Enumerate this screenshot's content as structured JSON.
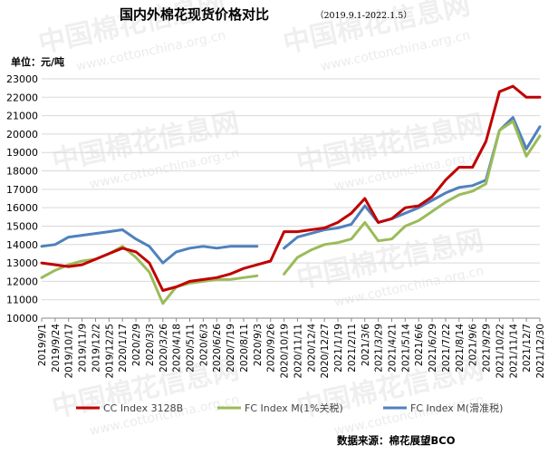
{
  "chart_data": {
    "type": "line",
    "title": "国内外棉花现货价格对比",
    "title_note": "（2019.9.1-2022.1.5）",
    "ylabel": "单位：元/吨",
    "ylim": [
      10000,
      23000
    ],
    "yticks": [
      10000,
      11000,
      12000,
      13000,
      14000,
      15000,
      16000,
      17000,
      18000,
      19000,
      20000,
      21000,
      22000,
      23000
    ],
    "grid": "horizontal",
    "legend_position": "bottom",
    "source": "数据来源：棉花展望BCO",
    "x": [
      "2019/9/1",
      "2019/9/24",
      "2019/10/17",
      "2019/11/9",
      "2019/12/2",
      "2019/12/25",
      "2020/1/17",
      "2020/2/9",
      "2020/3/3",
      "2020/3/26",
      "2020/4/18",
      "2020/5/11",
      "2020/6/3",
      "2020/6/26",
      "2020/7/19",
      "2020/8/11",
      "2020/9/3",
      "2020/9/26",
      "2020/10/19",
      "2020/11/11",
      "2020/12/4",
      "2020/12/27",
      "2021/1/19",
      "2021/2/11",
      "2021/3/6",
      "2021/3/29",
      "2021/4/21",
      "2021/5/14",
      "2021/6/6",
      "2021/6/29",
      "2021/7/22",
      "2021/8/14",
      "2021/9/6",
      "2021/9/29",
      "2021/10/22",
      "2021/11/14",
      "2021/12/7",
      "2021/12/30"
    ],
    "series": [
      {
        "name": "CC Index 3128B",
        "color": "#c00000",
        "values": [
          13000,
          12900,
          12800,
          12900,
          13200,
          13500,
          13800,
          13600,
          13000,
          11500,
          11700,
          12000,
          12100,
          12200,
          12400,
          12700,
          12900,
          13100,
          14700,
          14700,
          14800,
          14900,
          15200,
          15700,
          16500,
          15200,
          15400,
          16000,
          16100,
          16600,
          17500,
          18200,
          18200,
          19600,
          22300,
          22600,
          22000,
          22000
        ]
      },
      {
        "name": "FC Index M(1%关税)",
        "color": "#9bbb59",
        "values": [
          12200,
          12600,
          12900,
          13100,
          13200,
          13500,
          13900,
          13300,
          12500,
          10800,
          11700,
          11900,
          12000,
          12100,
          12100,
          12200,
          12300,
          null,
          12400,
          13300,
          13700,
          14000,
          14100,
          14300,
          15200,
          14200,
          14300,
          15000,
          15300,
          15800,
          16300,
          16700,
          16900,
          17300,
          20200,
          20700,
          18800,
          19900
        ]
      },
      {
        "name": "FC Index M(滑准税)",
        "color": "#4f81bd",
        "values": [
          13900,
          14000,
          14400,
          14500,
          14600,
          14700,
          14800,
          14300,
          13900,
          13000,
          13600,
          13800,
          13900,
          13800,
          13900,
          13900,
          13900,
          null,
          13800,
          14400,
          14600,
          14800,
          14900,
          15100,
          16100,
          15200,
          15400,
          15700,
          16000,
          16400,
          16800,
          17100,
          17200,
          17500,
          20200,
          20900,
          19200,
          20400
        ]
      }
    ]
  },
  "watermark": {
    "logo_text": "中国棉花信息网",
    "url_text": "www.cottonchina.org.cn"
  }
}
